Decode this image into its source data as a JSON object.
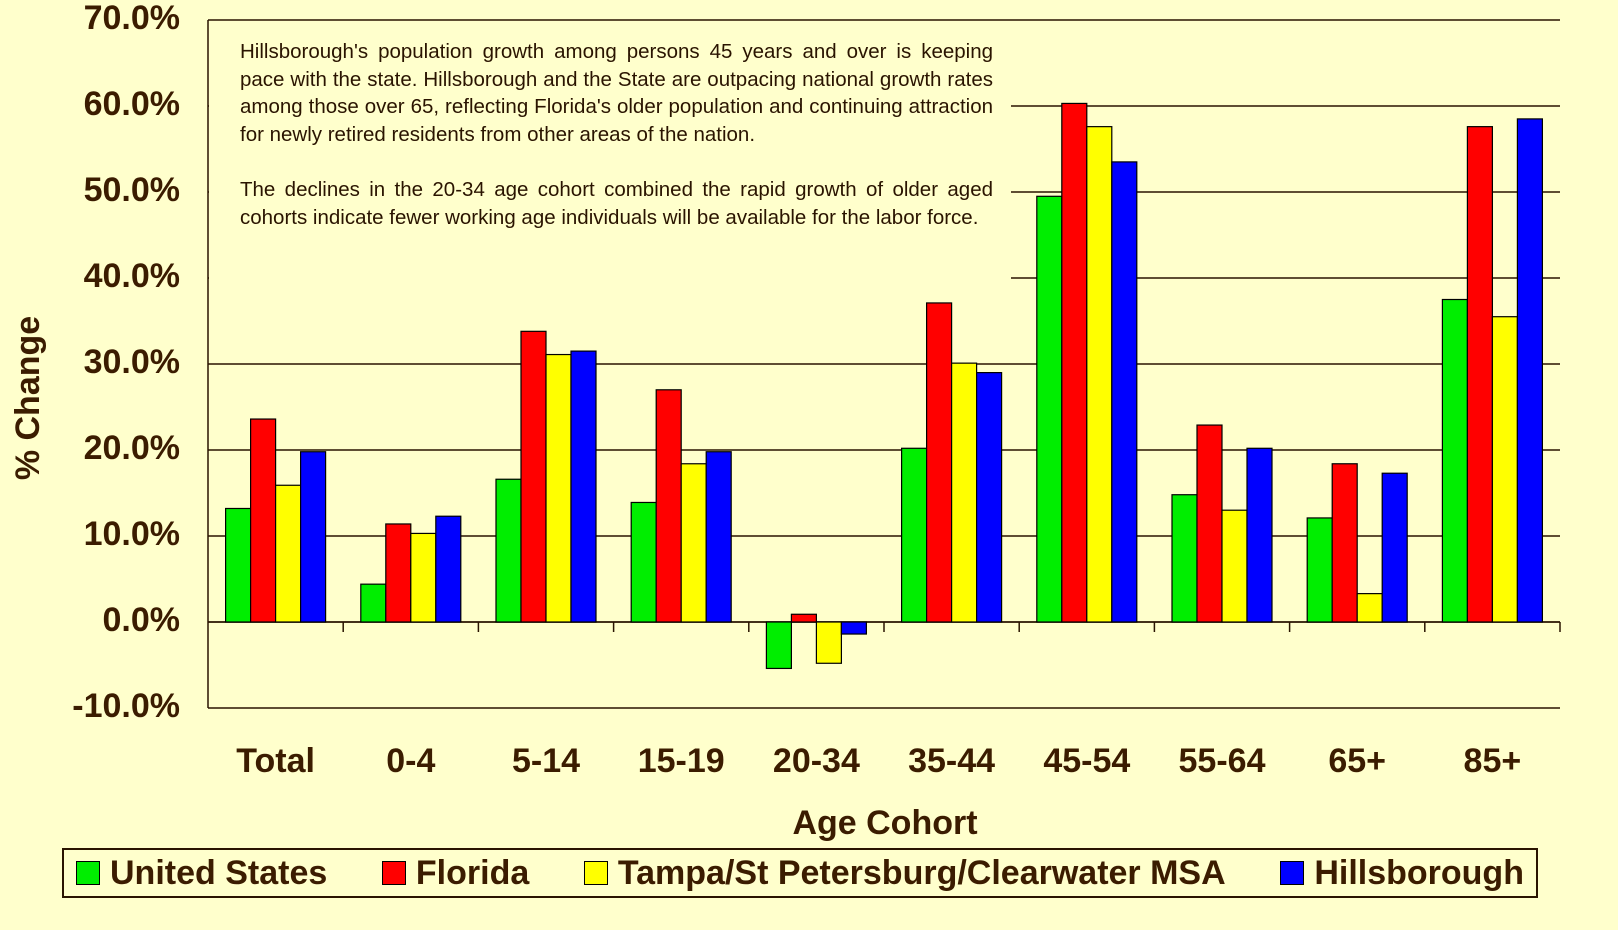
{
  "chart_data": {
    "type": "bar",
    "x_label": "Age Cohort",
    "y_label": "% Change",
    "annotations": [
      "Hillsborough's population growth among persons 45 years and over is keeping pace with the state.  Hillsborough and the State are outpacing national growth rates among those over 65, reflecting Florida's older population and continuing attraction for newly retired residents from other areas of the nation.",
      "The declines in the 20-34  age cohort combined the rapid growth of older aged cohorts indicate fewer working age individuals will be available for the labor force."
    ],
    "categories": [
      "Total",
      "0-4",
      "5-14",
      "15-19",
      "20-34",
      "35-44",
      "45-54",
      "55-64",
      "65+",
      "85+"
    ],
    "series": [
      {
        "name": "United States",
        "color": "#00ee00",
        "values": [
          13.2,
          4.4,
          16.6,
          13.9,
          -5.4,
          20.2,
          49.5,
          14.8,
          12.1,
          37.5
        ]
      },
      {
        "name": "Florida",
        "color": "#ff0000",
        "values": [
          23.6,
          11.4,
          33.8,
          27.0,
          0.9,
          37.1,
          60.3,
          22.9,
          18.4,
          57.6
        ]
      },
      {
        "name": "Tampa/St Petersburg/Clearwater MSA",
        "color": "#ffff00",
        "values": [
          15.9,
          10.3,
          31.1,
          18.4,
          -4.8,
          30.1,
          57.6,
          13.0,
          3.3,
          35.5
        ]
      },
      {
        "name": "Hillsborough",
        "color": "#0000ff",
        "values": [
          19.8,
          12.3,
          31.5,
          19.8,
          -1.4,
          29.0,
          53.5,
          20.2,
          17.3,
          58.5
        ]
      }
    ],
    "ylim": [
      -10,
      70
    ],
    "yticks": [
      {
        "value": -10,
        "label": "-10.0%"
      },
      {
        "value": 0,
        "label": "0.0%"
      },
      {
        "value": 10,
        "label": "10.0%"
      },
      {
        "value": 20,
        "label": "20.0%"
      },
      {
        "value": 30,
        "label": "30.0%"
      },
      {
        "value": 40,
        "label": "40.0%"
      },
      {
        "value": 50,
        "label": "50.0%"
      },
      {
        "value": 60,
        "label": "60.0%"
      },
      {
        "value": 70,
        "label": "70.0%"
      }
    ],
    "grid": true
  }
}
